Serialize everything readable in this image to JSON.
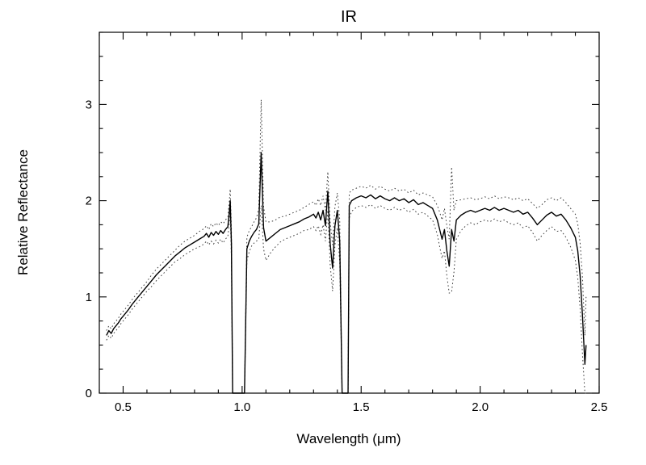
{
  "page": {
    "background": "#ffffff",
    "foreground": "#000000"
  },
  "chart_data": {
    "type": "line",
    "title": "IR",
    "xlabel": "Wavelength (μm)",
    "ylabel": "Relative Reflectance",
    "xlim": [
      0.4,
      2.5
    ],
    "ylim": [
      0,
      3.75
    ],
    "xticks": [
      0.5,
      1.0,
      1.5,
      2.0,
      2.5
    ],
    "xtick_labels": [
      "0.5",
      "1.0",
      "1.5",
      "2.0",
      "2.5"
    ],
    "yticks": [
      0,
      1,
      2,
      3
    ],
    "ytick_labels": [
      "0",
      "1",
      "2",
      "3"
    ],
    "x_minor_step": 0.1,
    "y_minor_step": 0.25,
    "grid": false,
    "legend": "none",
    "colors": {
      "spectrum": "#000000",
      "envelope": "#3c3c3c"
    },
    "series": [
      {
        "name": "spectrum",
        "style": "solid",
        "color": "#000000"
      },
      {
        "name": "uncertainty-upper",
        "style": "dotted",
        "color": "#3c3c3c"
      },
      {
        "name": "uncertainty-lower",
        "style": "dotted",
        "color": "#3c3c3c"
      }
    ],
    "points_format": [
      "wavelength_um",
      "reflectance",
      "uncertainty"
    ],
    "points": [
      [
        0.43,
        0.6,
        0.05
      ],
      [
        0.44,
        0.65,
        0.05
      ],
      [
        0.45,
        0.62,
        0.05
      ],
      [
        0.46,
        0.67,
        0.05
      ],
      [
        0.47,
        0.7,
        0.05
      ],
      [
        0.48,
        0.73,
        0.05
      ],
      [
        0.49,
        0.77,
        0.05
      ],
      [
        0.5,
        0.8,
        0.05
      ],
      [
        0.52,
        0.86,
        0.05
      ],
      [
        0.54,
        0.93,
        0.05
      ],
      [
        0.56,
        0.99,
        0.05
      ],
      [
        0.58,
        1.05,
        0.05
      ],
      [
        0.6,
        1.11,
        0.05
      ],
      [
        0.62,
        1.17,
        0.06
      ],
      [
        0.64,
        1.23,
        0.06
      ],
      [
        0.66,
        1.28,
        0.06
      ],
      [
        0.68,
        1.33,
        0.06
      ],
      [
        0.7,
        1.38,
        0.06
      ],
      [
        0.72,
        1.43,
        0.06
      ],
      [
        0.74,
        1.47,
        0.07
      ],
      [
        0.76,
        1.51,
        0.07
      ],
      [
        0.78,
        1.54,
        0.07
      ],
      [
        0.8,
        1.57,
        0.07
      ],
      [
        0.82,
        1.6,
        0.08
      ],
      [
        0.84,
        1.63,
        0.08
      ],
      [
        0.85,
        1.66,
        0.08
      ],
      [
        0.86,
        1.62,
        0.08
      ],
      [
        0.87,
        1.67,
        0.09
      ],
      [
        0.88,
        1.64,
        0.09
      ],
      [
        0.89,
        1.68,
        0.09
      ],
      [
        0.9,
        1.65,
        0.09
      ],
      [
        0.91,
        1.69,
        0.09
      ],
      [
        0.92,
        1.66,
        0.1
      ],
      [
        0.93,
        1.7,
        0.1
      ],
      [
        0.94,
        1.73,
        0.1
      ],
      [
        0.945,
        1.85,
        0.11
      ],
      [
        0.95,
        2.0,
        0.12
      ],
      [
        0.955,
        1.55,
        0.15
      ],
      [
        0.96,
        0,
        0
      ],
      [
        1.01,
        0,
        0
      ],
      [
        1.02,
        1.5,
        0.12
      ],
      [
        1.03,
        1.58,
        0.11
      ],
      [
        1.04,
        1.63,
        0.1
      ],
      [
        1.05,
        1.67,
        0.11
      ],
      [
        1.06,
        1.7,
        0.12
      ],
      [
        1.07,
        1.76,
        0.16
      ],
      [
        1.08,
        2.5,
        0.55
      ],
      [
        1.09,
        1.72,
        0.22
      ],
      [
        1.1,
        1.58,
        0.2
      ],
      [
        1.12,
        1.62,
        0.16
      ],
      [
        1.14,
        1.66,
        0.14
      ],
      [
        1.16,
        1.7,
        0.13
      ],
      [
        1.18,
        1.72,
        0.12
      ],
      [
        1.2,
        1.74,
        0.12
      ],
      [
        1.22,
        1.76,
        0.12
      ],
      [
        1.24,
        1.78,
        0.12
      ],
      [
        1.26,
        1.81,
        0.12
      ],
      [
        1.28,
        1.83,
        0.13
      ],
      [
        1.3,
        1.86,
        0.13
      ],
      [
        1.31,
        1.82,
        0.13
      ],
      [
        1.32,
        1.88,
        0.14
      ],
      [
        1.33,
        1.8,
        0.15
      ],
      [
        1.34,
        1.9,
        0.15
      ],
      [
        1.35,
        1.74,
        0.16
      ],
      [
        1.36,
        2.1,
        0.2
      ],
      [
        1.37,
        1.55,
        0.22
      ],
      [
        1.38,
        1.3,
        0.24
      ],
      [
        1.39,
        1.74,
        0.2
      ],
      [
        1.4,
        1.9,
        0.18
      ],
      [
        1.41,
        1.58,
        0.22
      ],
      [
        1.42,
        0,
        0
      ],
      [
        1.445,
        0,
        0
      ],
      [
        1.45,
        1.95,
        0.13
      ],
      [
        1.46,
        2.0,
        0.11
      ],
      [
        1.48,
        2.03,
        0.1
      ],
      [
        1.5,
        2.05,
        0.1
      ],
      [
        1.52,
        2.03,
        0.1
      ],
      [
        1.54,
        2.06,
        0.1
      ],
      [
        1.56,
        2.02,
        0.1
      ],
      [
        1.58,
        2.05,
        0.1
      ],
      [
        1.6,
        2.02,
        0.1
      ],
      [
        1.62,
        2.0,
        0.1
      ],
      [
        1.64,
        2.03,
        0.1
      ],
      [
        1.66,
        2.0,
        0.1
      ],
      [
        1.68,
        2.02,
        0.1
      ],
      [
        1.7,
        1.98,
        0.1
      ],
      [
        1.72,
        2.01,
        0.1
      ],
      [
        1.74,
        1.96,
        0.1
      ],
      [
        1.76,
        1.98,
        0.1
      ],
      [
        1.78,
        1.95,
        0.11
      ],
      [
        1.8,
        1.92,
        0.12
      ],
      [
        1.82,
        1.8,
        0.15
      ],
      [
        1.83,
        1.7,
        0.18
      ],
      [
        1.84,
        1.6,
        0.2
      ],
      [
        1.85,
        1.7,
        0.22
      ],
      [
        1.86,
        1.48,
        0.26
      ],
      [
        1.87,
        1.32,
        0.28
      ],
      [
        1.88,
        1.7,
        0.65
      ],
      [
        1.89,
        1.58,
        0.32
      ],
      [
        1.9,
        1.8,
        0.2
      ],
      [
        1.92,
        1.85,
        0.16
      ],
      [
        1.94,
        1.88,
        0.14
      ],
      [
        1.96,
        1.9,
        0.13
      ],
      [
        1.98,
        1.88,
        0.13
      ],
      [
        2.0,
        1.9,
        0.12
      ],
      [
        2.02,
        1.92,
        0.12
      ],
      [
        2.04,
        1.9,
        0.12
      ],
      [
        2.06,
        1.93,
        0.12
      ],
      [
        2.08,
        1.9,
        0.12
      ],
      [
        2.1,
        1.92,
        0.12
      ],
      [
        2.12,
        1.9,
        0.13
      ],
      [
        2.14,
        1.88,
        0.13
      ],
      [
        2.16,
        1.9,
        0.13
      ],
      [
        2.18,
        1.86,
        0.14
      ],
      [
        2.2,
        1.88,
        0.14
      ],
      [
        2.22,
        1.82,
        0.15
      ],
      [
        2.24,
        1.75,
        0.17
      ],
      [
        2.26,
        1.8,
        0.16
      ],
      [
        2.28,
        1.85,
        0.16
      ],
      [
        2.3,
        1.88,
        0.15
      ],
      [
        2.32,
        1.84,
        0.16
      ],
      [
        2.34,
        1.86,
        0.17
      ],
      [
        2.36,
        1.8,
        0.18
      ],
      [
        2.38,
        1.72,
        0.2
      ],
      [
        2.4,
        1.62,
        0.24
      ],
      [
        2.41,
        1.48,
        0.28
      ],
      [
        2.42,
        1.22,
        0.34
      ],
      [
        2.43,
        0.8,
        0.4
      ],
      [
        2.44,
        0.3,
        0.3
      ],
      [
        2.445,
        0.5,
        0.5
      ]
    ]
  }
}
